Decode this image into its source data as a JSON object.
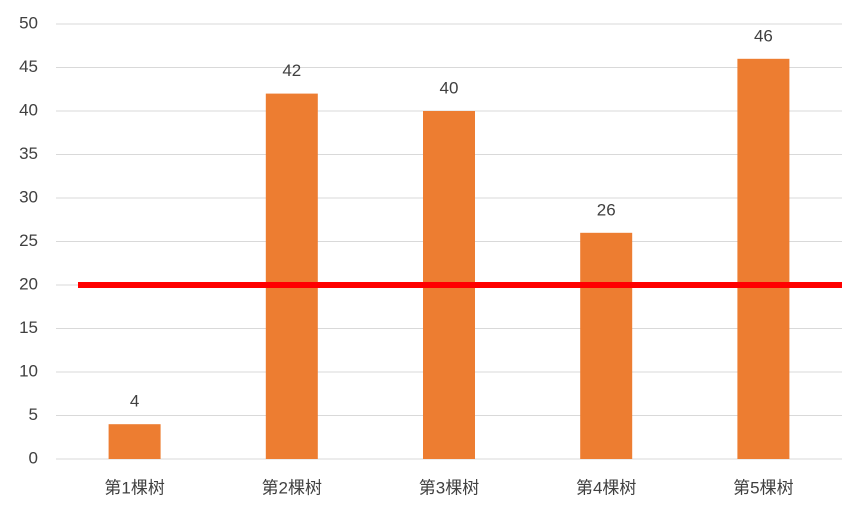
{
  "chart_data": {
    "type": "bar",
    "categories": [
      "第1棵树",
      "第2棵树",
      "第3棵树",
      "第4棵树",
      "第5棵树"
    ],
    "values": [
      4,
      42,
      40,
      26,
      46
    ],
    "color": "#ed7d31",
    "ylim": [
      0,
      50
    ],
    "yticks": [
      0,
      5,
      10,
      15,
      20,
      25,
      30,
      35,
      40,
      45,
      50
    ],
    "grid": true,
    "reference_line": {
      "value": 20,
      "color": "#ff0000"
    }
  }
}
